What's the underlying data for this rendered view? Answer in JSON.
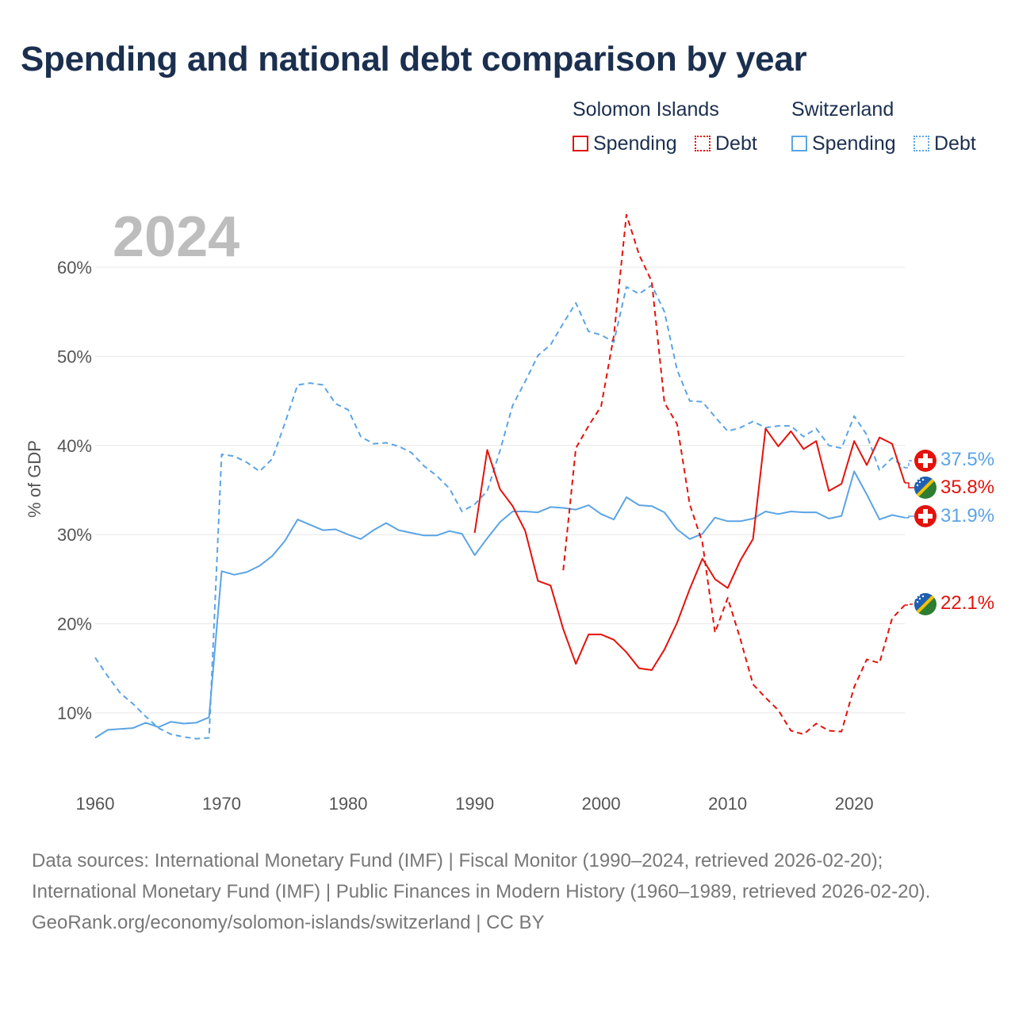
{
  "title": "Spending and national debt comparison by year",
  "year_label": "2024",
  "legend": {
    "groups": [
      {
        "name": "Solomon Islands",
        "items": [
          {
            "label": "Spending",
            "style": "solid",
            "color": "#e3120b"
          },
          {
            "label": "Debt",
            "style": "dotted",
            "color": "#e3120b"
          }
        ]
      },
      {
        "name": "Switzerland",
        "items": [
          {
            "label": "Spending",
            "style": "solid",
            "color": "#5ba4e5"
          },
          {
            "label": "Debt",
            "style": "dotted",
            "color": "#5ba4e5"
          }
        ]
      }
    ]
  },
  "end_labels": {
    "ch_debt": "37.5%",
    "sb_spending": "35.8%",
    "ch_spending": "31.9%",
    "sb_debt": "22.1%"
  },
  "footer": {
    "line1": "Data sources: International Monetary Fund (IMF) | Fiscal Monitor (1990–2024, retrieved 2026-02-20); International Monetary Fund (IMF) | Public Finances in Modern History (1960–1989, retrieved 2026-02-20).",
    "line2": "GeoRank.org/economy/solomon-islands/switzerland | CC BY"
  },
  "colors": {
    "solomon": "#e3120b",
    "switzerland": "#5ba4e5",
    "title": "#1b2f4f",
    "grid": "#e6e6e6"
  },
  "chart_data": {
    "type": "line",
    "title": "Spending and national debt comparison by year",
    "xlabel": "",
    "ylabel": "% of GDP",
    "xlim": [
      1960,
      2024
    ],
    "ylim": [
      3,
      68
    ],
    "x_ticks": [
      1960,
      1970,
      1980,
      1990,
      2000,
      2010,
      2020
    ],
    "y_ticks": [
      10,
      20,
      30,
      40,
      50,
      60
    ],
    "y_tick_labels": [
      "10%",
      "20%",
      "30%",
      "40%",
      "50%",
      "60%"
    ],
    "grid": true,
    "series": [
      {
        "name": "Switzerland Spending",
        "country": "Switzerland",
        "metric": "Spending",
        "style": "solid",
        "color": "#5ba4e5",
        "x": [
          1960,
          1961,
          1962,
          1963,
          1964,
          1965,
          1966,
          1967,
          1968,
          1969,
          1970,
          1971,
          1972,
          1973,
          1974,
          1975,
          1976,
          1977,
          1978,
          1979,
          1980,
          1981,
          1982,
          1983,
          1984,
          1985,
          1986,
          1987,
          1988,
          1989,
          1990,
          1991,
          1992,
          1993,
          1994,
          1995,
          1996,
          1997,
          1998,
          1999,
          2000,
          2001,
          2002,
          2003,
          2004,
          2005,
          2006,
          2007,
          2008,
          2009,
          2010,
          2011,
          2012,
          2013,
          2014,
          2015,
          2016,
          2017,
          2018,
          2019,
          2020,
          2021,
          2022,
          2023,
          2024
        ],
        "values": [
          7.2,
          8.1,
          8.2,
          8.3,
          8.9,
          8.4,
          9.0,
          8.8,
          8.9,
          9.5,
          25.9,
          25.5,
          25.8,
          26.5,
          27.6,
          29.3,
          31.7,
          31.1,
          30.5,
          30.6,
          30.0,
          29.5,
          30.5,
          31.3,
          30.5,
          30.2,
          29.9,
          29.9,
          30.4,
          30.1,
          27.7,
          29.6,
          31.4,
          32.6,
          32.6,
          32.5,
          33.1,
          33.0,
          32.8,
          33.3,
          32.3,
          31.7,
          34.2,
          33.3,
          33.2,
          32.5,
          30.6,
          29.5,
          30.1,
          31.9,
          31.5,
          31.5,
          31.8,
          32.6,
          32.3,
          32.6,
          32.5,
          32.5,
          31.8,
          32.1,
          37.1,
          34.5,
          31.7,
          32.2,
          31.9
        ]
      },
      {
        "name": "Switzerland Debt",
        "country": "Switzerland",
        "metric": "Debt",
        "style": "dashed",
        "color": "#5ba4e5",
        "x": [
          1960,
          1961,
          1962,
          1963,
          1964,
          1965,
          1966,
          1967,
          1968,
          1969,
          1970,
          1971,
          1972,
          1973,
          1974,
          1975,
          1976,
          1977,
          1978,
          1979,
          1980,
          1981,
          1982,
          1983,
          1984,
          1985,
          1986,
          1987,
          1988,
          1989,
          1990,
          1991,
          1992,
          1993,
          1994,
          1995,
          1996,
          1997,
          1998,
          1999,
          2000,
          2001,
          2002,
          2003,
          2004,
          2005,
          2006,
          2007,
          2008,
          2009,
          2010,
          2011,
          2012,
          2013,
          2014,
          2015,
          2016,
          2017,
          2018,
          2019,
          2020,
          2021,
          2022,
          2023,
          2024
        ],
        "values": [
          16.2,
          14.1,
          12.2,
          11.0,
          9.6,
          8.3,
          7.6,
          7.3,
          7.1,
          7.2,
          39.0,
          38.8,
          38.1,
          37.1,
          38.5,
          42.5,
          46.8,
          47.0,
          46.8,
          44.7,
          44.0,
          41.0,
          40.2,
          40.3,
          39.9,
          39.2,
          37.7,
          36.6,
          35.2,
          32.6,
          33.4,
          34.9,
          39.4,
          44.5,
          47.2,
          50.1,
          51.3,
          53.7,
          56.0,
          52.8,
          52.4,
          51.6,
          57.8,
          57.0,
          58.0,
          55.0,
          48.5,
          45.0,
          44.9,
          43.2,
          41.6,
          42.0,
          42.7,
          42.0,
          42.2,
          42.2,
          41.0,
          41.9,
          40.0,
          39.7,
          43.3,
          41.2,
          37.2,
          38.6,
          37.5
        ]
      },
      {
        "name": "Solomon Islands Spending",
        "country": "Solomon Islands",
        "metric": "Spending",
        "style": "solid",
        "color": "#e3120b",
        "x": [
          1990,
          1991,
          1992,
          1993,
          1994,
          1995,
          1996,
          1997,
          1998,
          1999,
          2000,
          2001,
          2002,
          2003,
          2004,
          2005,
          2006,
          2007,
          2008,
          2009,
          2010,
          2011,
          2012,
          2013,
          2014,
          2015,
          2016,
          2017,
          2018,
          2019,
          2020,
          2021,
          2022,
          2023,
          2024
        ],
        "values": [
          30.2,
          39.5,
          35.1,
          33.2,
          30.4,
          24.8,
          24.3,
          19.4,
          15.5,
          18.8,
          18.8,
          18.2,
          16.8,
          15.0,
          14.8,
          17.1,
          20.1,
          23.9,
          27.3,
          25.0,
          24.0,
          27.1,
          29.5,
          41.9,
          39.9,
          41.6,
          39.6,
          40.5,
          34.9,
          35.7,
          40.5,
          37.8,
          40.9,
          40.2,
          35.8
        ]
      },
      {
        "name": "Solomon Islands Debt",
        "country": "Solomon Islands",
        "metric": "Debt",
        "style": "dashed",
        "color": "#e3120b",
        "x": [
          1997,
          1998,
          1999,
          2000,
          2001,
          2002,
          2003,
          2004,
          2005,
          2006,
          2007,
          2008,
          2009,
          2010,
          2011,
          2012,
          2013,
          2014,
          2015,
          2016,
          2017,
          2018,
          2019,
          2020,
          2021,
          2022,
          2023,
          2024
        ],
        "values": [
          26.0,
          39.7,
          42.2,
          44.4,
          52.3,
          65.9,
          61.4,
          58.4,
          44.8,
          42.4,
          33.4,
          29.1,
          19.0,
          22.9,
          18.3,
          13.2,
          11.7,
          10.3,
          8.0,
          7.6,
          8.8,
          8.0,
          7.9,
          12.9,
          16.0,
          15.6,
          20.6,
          22.1
        ]
      }
    ]
  }
}
